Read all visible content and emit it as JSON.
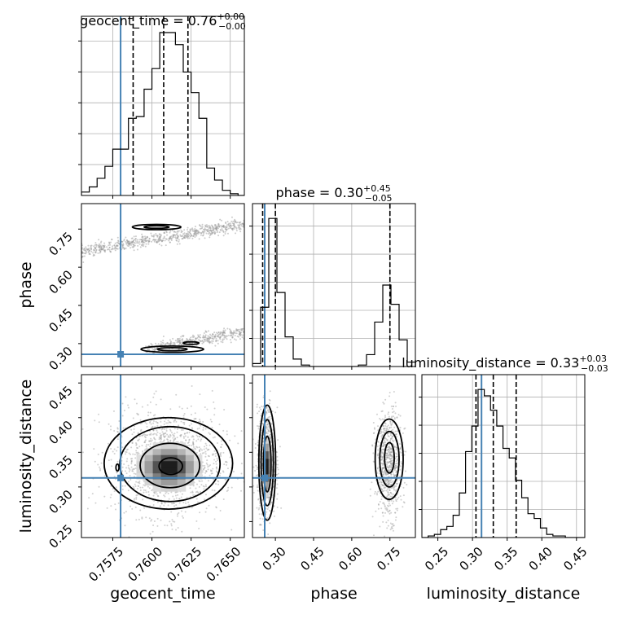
{
  "colors": {
    "truth": "#4682b4",
    "hist": "#000000",
    "grid": "#b0b0b0",
    "scatter": "#9a9a9a"
  },
  "chart_data": {
    "type": "corner",
    "parameters": [
      "geocent_time",
      "phase",
      "luminosity_distance"
    ],
    "truth": {
      "geocent_time": 0.758,
      "phase": 0.258,
      "luminosity_distance": 0.313
    },
    "titles": [
      {
        "param": "geocent_time",
        "text": "geocent_time = 0.76",
        "sup": "+0.00",
        "sub": "−0.00"
      },
      {
        "param": "phase",
        "text": "phase = 0.30",
        "sup": "+0.45",
        "sub": "−0.05"
      },
      {
        "param": "luminosity_distance",
        "text": "luminosity_distance = 0.33",
        "sup": "+0.03",
        "sub": "−0.03"
      }
    ],
    "axes": {
      "geocent_time": {
        "range": [
          0.7555,
          0.7659
        ],
        "ticks": [
          0.7575,
          0.76,
          0.7625,
          0.765
        ],
        "tick_labels": [
          "0.7575",
          "0.7600",
          "0.7625",
          "0.7650"
        ],
        "label": "geocent_time"
      },
      "phase": {
        "range": [
          0.21,
          0.85
        ],
        "ticks": [
          0.3,
          0.45,
          0.6,
          0.75
        ],
        "tick_labels": [
          "0.30",
          "0.45",
          "0.60",
          "0.75"
        ],
        "label": "phase"
      },
      "luminosity_distance": {
        "range": [
          0.227,
          0.462
        ],
        "ticks": [
          0.25,
          0.3,
          0.35,
          0.4,
          0.45
        ],
        "tick_labels": [
          "0.25",
          "0.30",
          "0.35",
          "0.40",
          "0.45"
        ],
        "label": "luminosity_distance"
      }
    },
    "histograms": [
      {
        "param": "geocent_time",
        "quantiles": [
          0.7588,
          0.76075,
          0.7623
        ],
        "bin_edges": [
          0.7555,
          0.756,
          0.7565,
          0.757,
          0.7575,
          0.758,
          0.7585,
          0.759,
          0.7595,
          0.76,
          0.7605,
          0.761,
          0.7615,
          0.762,
          0.7625,
          0.763,
          0.7635,
          0.764,
          0.7645,
          0.765,
          0.7655,
          0.7659
        ],
        "counts": [
          2,
          5,
          10,
          17,
          27,
          27,
          45,
          46,
          62,
          74,
          95,
          95,
          88,
          72,
          60,
          45,
          16,
          9,
          3,
          1,
          0
        ]
      },
      {
        "param": "phase",
        "quantiles": [
          0.25,
          0.3,
          0.75
        ],
        "bin_edges": [
          0.21,
          0.242,
          0.274,
          0.306,
          0.338,
          0.37,
          0.402,
          0.434,
          0.466,
          0.498,
          0.53,
          0.562,
          0.594,
          0.626,
          0.658,
          0.69,
          0.722,
          0.754,
          0.786,
          0.818,
          0.85
        ],
        "counts": [
          2,
          40,
          100,
          50,
          20,
          5,
          1,
          0,
          0,
          0,
          0,
          0,
          0,
          1,
          8,
          30,
          55,
          42,
          18,
          3
        ]
      },
      {
        "param": "luminosity_distance",
        "quantiles": [
          0.305,
          0.33,
          0.363
        ],
        "bin_edges": [
          0.227,
          0.236,
          0.245,
          0.254,
          0.263,
          0.272,
          0.281,
          0.29,
          0.299,
          0.308,
          0.317,
          0.326,
          0.335,
          0.344,
          0.353,
          0.362,
          0.371,
          0.38,
          0.389,
          0.398,
          0.407,
          0.416,
          0.425,
          0.434,
          0.443,
          0.452,
          0.462
        ],
        "counts": [
          0,
          1,
          2,
          5,
          7,
          14,
          28,
          54,
          70,
          93,
          89,
          80,
          70,
          56,
          50,
          36,
          25,
          15,
          12,
          6,
          2,
          1,
          1,
          0,
          0,
          0
        ]
      }
    ],
    "pair_plots": [
      {
        "x": "geocent_time",
        "y": "phase",
        "grid": false,
        "scatter_bands": [
          {
            "x_range": [
              0.7555,
              0.7659
            ],
            "y_at_x0": 0.66,
            "slope": 10.6,
            "spread": 0.012,
            "count": 700
          },
          {
            "x_range": [
              0.7596,
              0.7659
            ],
            "y_at_x0": 0.235,
            "slope": 10.6,
            "spread": 0.012,
            "count": 400
          }
        ],
        "contours": [
          {
            "center": [
              0.7603,
              0.758
            ],
            "axes": [
              0.00155,
              0.0105
            ],
            "angle_deg": 0
          },
          {
            "center": [
              0.7603,
              0.758
            ],
            "axes": [
              0.0008,
              0.005
            ],
            "angle_deg": 0
          },
          {
            "center": [
              0.7613,
              0.278
            ],
            "axes": [
              0.002,
              0.0125
            ],
            "angle_deg": 0
          },
          {
            "center": [
              0.7613,
              0.278
            ],
            "axes": [
              0.00095,
              0.006
            ],
            "angle_deg": 0
          },
          {
            "center": [
              0.7625,
              0.302
            ],
            "axes": [
              0.0005,
              0.005
            ],
            "angle_deg": 0
          }
        ]
      },
      {
        "x": "geocent_time",
        "y": "luminosity_distance",
        "grid": false,
        "scatter_clouds": [
          {
            "center": [
              0.761,
              0.335
            ],
            "sd": [
              0.0018,
              0.038
            ],
            "count": 1400
          }
        ],
        "heat_center": [
          0.7611,
          0.329
        ],
        "contours": [
          {
            "center": [
              0.76105,
              0.334
            ],
            "axes": [
              0.0041,
              0.066
            ],
            "angle_deg": 0
          },
          {
            "center": [
              0.76115,
              0.333
            ],
            "axes": [
              0.0032,
              0.054
            ],
            "angle_deg": 0
          },
          {
            "center": [
              0.76115,
              0.331
            ],
            "axes": [
              0.0019,
              0.032
            ],
            "angle_deg": 0
          },
          {
            "center": [
              0.7612,
              0.33
            ],
            "axes": [
              0.00075,
              0.012
            ],
            "angle_deg": 0
          },
          {
            "center": [
              0.7578,
              0.328
            ],
            "axes": [
              0.0001,
              0.005
            ],
            "angle_deg": 0
          }
        ]
      },
      {
        "x": "phase",
        "y": "luminosity_distance",
        "grid": false,
        "scatter_clouds": [
          {
            "center": [
              0.265,
              0.335
            ],
            "sd": [
              0.018,
              0.038
            ],
            "count": 900
          },
          {
            "center": [
              0.745,
              0.332
            ],
            "sd": [
              0.026,
              0.038
            ],
            "count": 750
          }
        ],
        "heat_center": [
          0.268,
          0.33
        ],
        "contours": [
          {
            "center": [
              0.268,
              0.335
            ],
            "axes": [
              0.033,
              0.083
            ],
            "angle_deg": 0
          },
          {
            "center": [
              0.268,
              0.335
            ],
            "axes": [
              0.024,
              0.062
            ],
            "angle_deg": 0
          },
          {
            "center": [
              0.268,
              0.333
            ],
            "axes": [
              0.015,
              0.04
            ],
            "angle_deg": 0
          },
          {
            "center": [
              0.747,
              0.34
            ],
            "axes": [
              0.055,
              0.058
            ],
            "angle_deg": 0
          },
          {
            "center": [
              0.748,
              0.34
            ],
            "axes": [
              0.038,
              0.04
            ],
            "angle_deg": 0
          },
          {
            "center": [
              0.748,
              0.342
            ],
            "axes": [
              0.019,
              0.022
            ],
            "angle_deg": 0
          }
        ]
      }
    ]
  }
}
